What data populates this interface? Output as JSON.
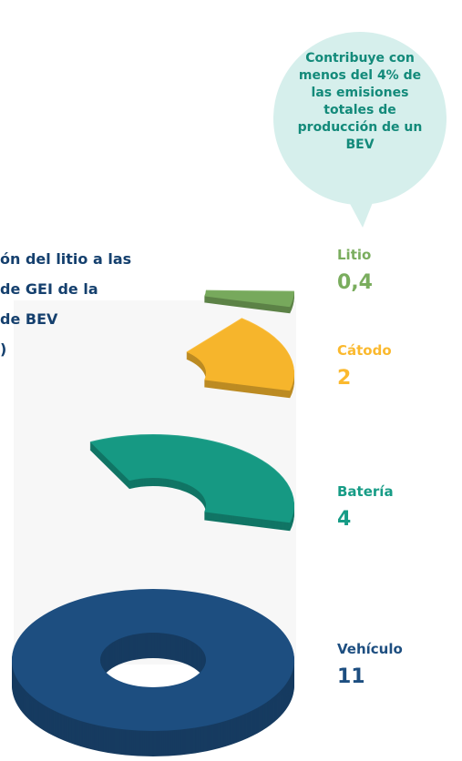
{
  "chart_data": {
    "type": "pie",
    "title_lines": [
      "ón del litio a las",
      "de GEI de la",
      "de BEV",
      ")"
    ],
    "annotation": "Contribuye con menos del 4% de las emisiones totales de producción de un BEV",
    "categories": [
      "Vehículo",
      "Batería",
      "Cátodo",
      "Litio"
    ],
    "values": [
      11,
      4,
      2,
      0.4
    ],
    "value_labels": [
      "11",
      "4",
      "2",
      "0,4"
    ],
    "colors": [
      "#1d4e80",
      "#179c86",
      "#fbb92e",
      "#7aad5e"
    ]
  }
}
